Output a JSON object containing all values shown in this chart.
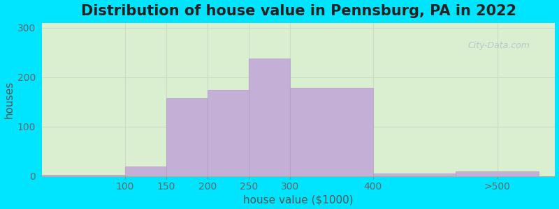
{
  "title": "Distribution of house value in Pennsburg, PA in 2022",
  "xlabel": "house value ($1000)",
  "ylabel": "houses",
  "bar_edges": [
    0,
    100,
    150,
    200,
    250,
    300,
    400,
    500,
    600
  ],
  "bar_values": [
    3,
    20,
    158,
    175,
    238,
    178,
    5,
    10
  ],
  "xtick_positions": [
    100,
    150,
    200,
    250,
    300,
    400,
    550
  ],
  "xtick_labels": [
    "100",
    "150",
    "200",
    "250",
    "300",
    "400",
    ">500"
  ],
  "ytick_values": [
    0,
    100,
    200,
    300
  ],
  "xlim": [
    0,
    620
  ],
  "ylim": [
    0,
    310
  ],
  "bar_color": "#c4afd6",
  "bar_edge_color": "#b09cc4",
  "background_outer": "#00e5ff",
  "background_inner": "#daefd0",
  "background_inner_right": "#eaf4e8",
  "grid_color": "#d0d8c8",
  "title_fontsize": 15,
  "axis_label_fontsize": 11,
  "tick_fontsize": 10,
  "watermark_text": "City-Data.com"
}
